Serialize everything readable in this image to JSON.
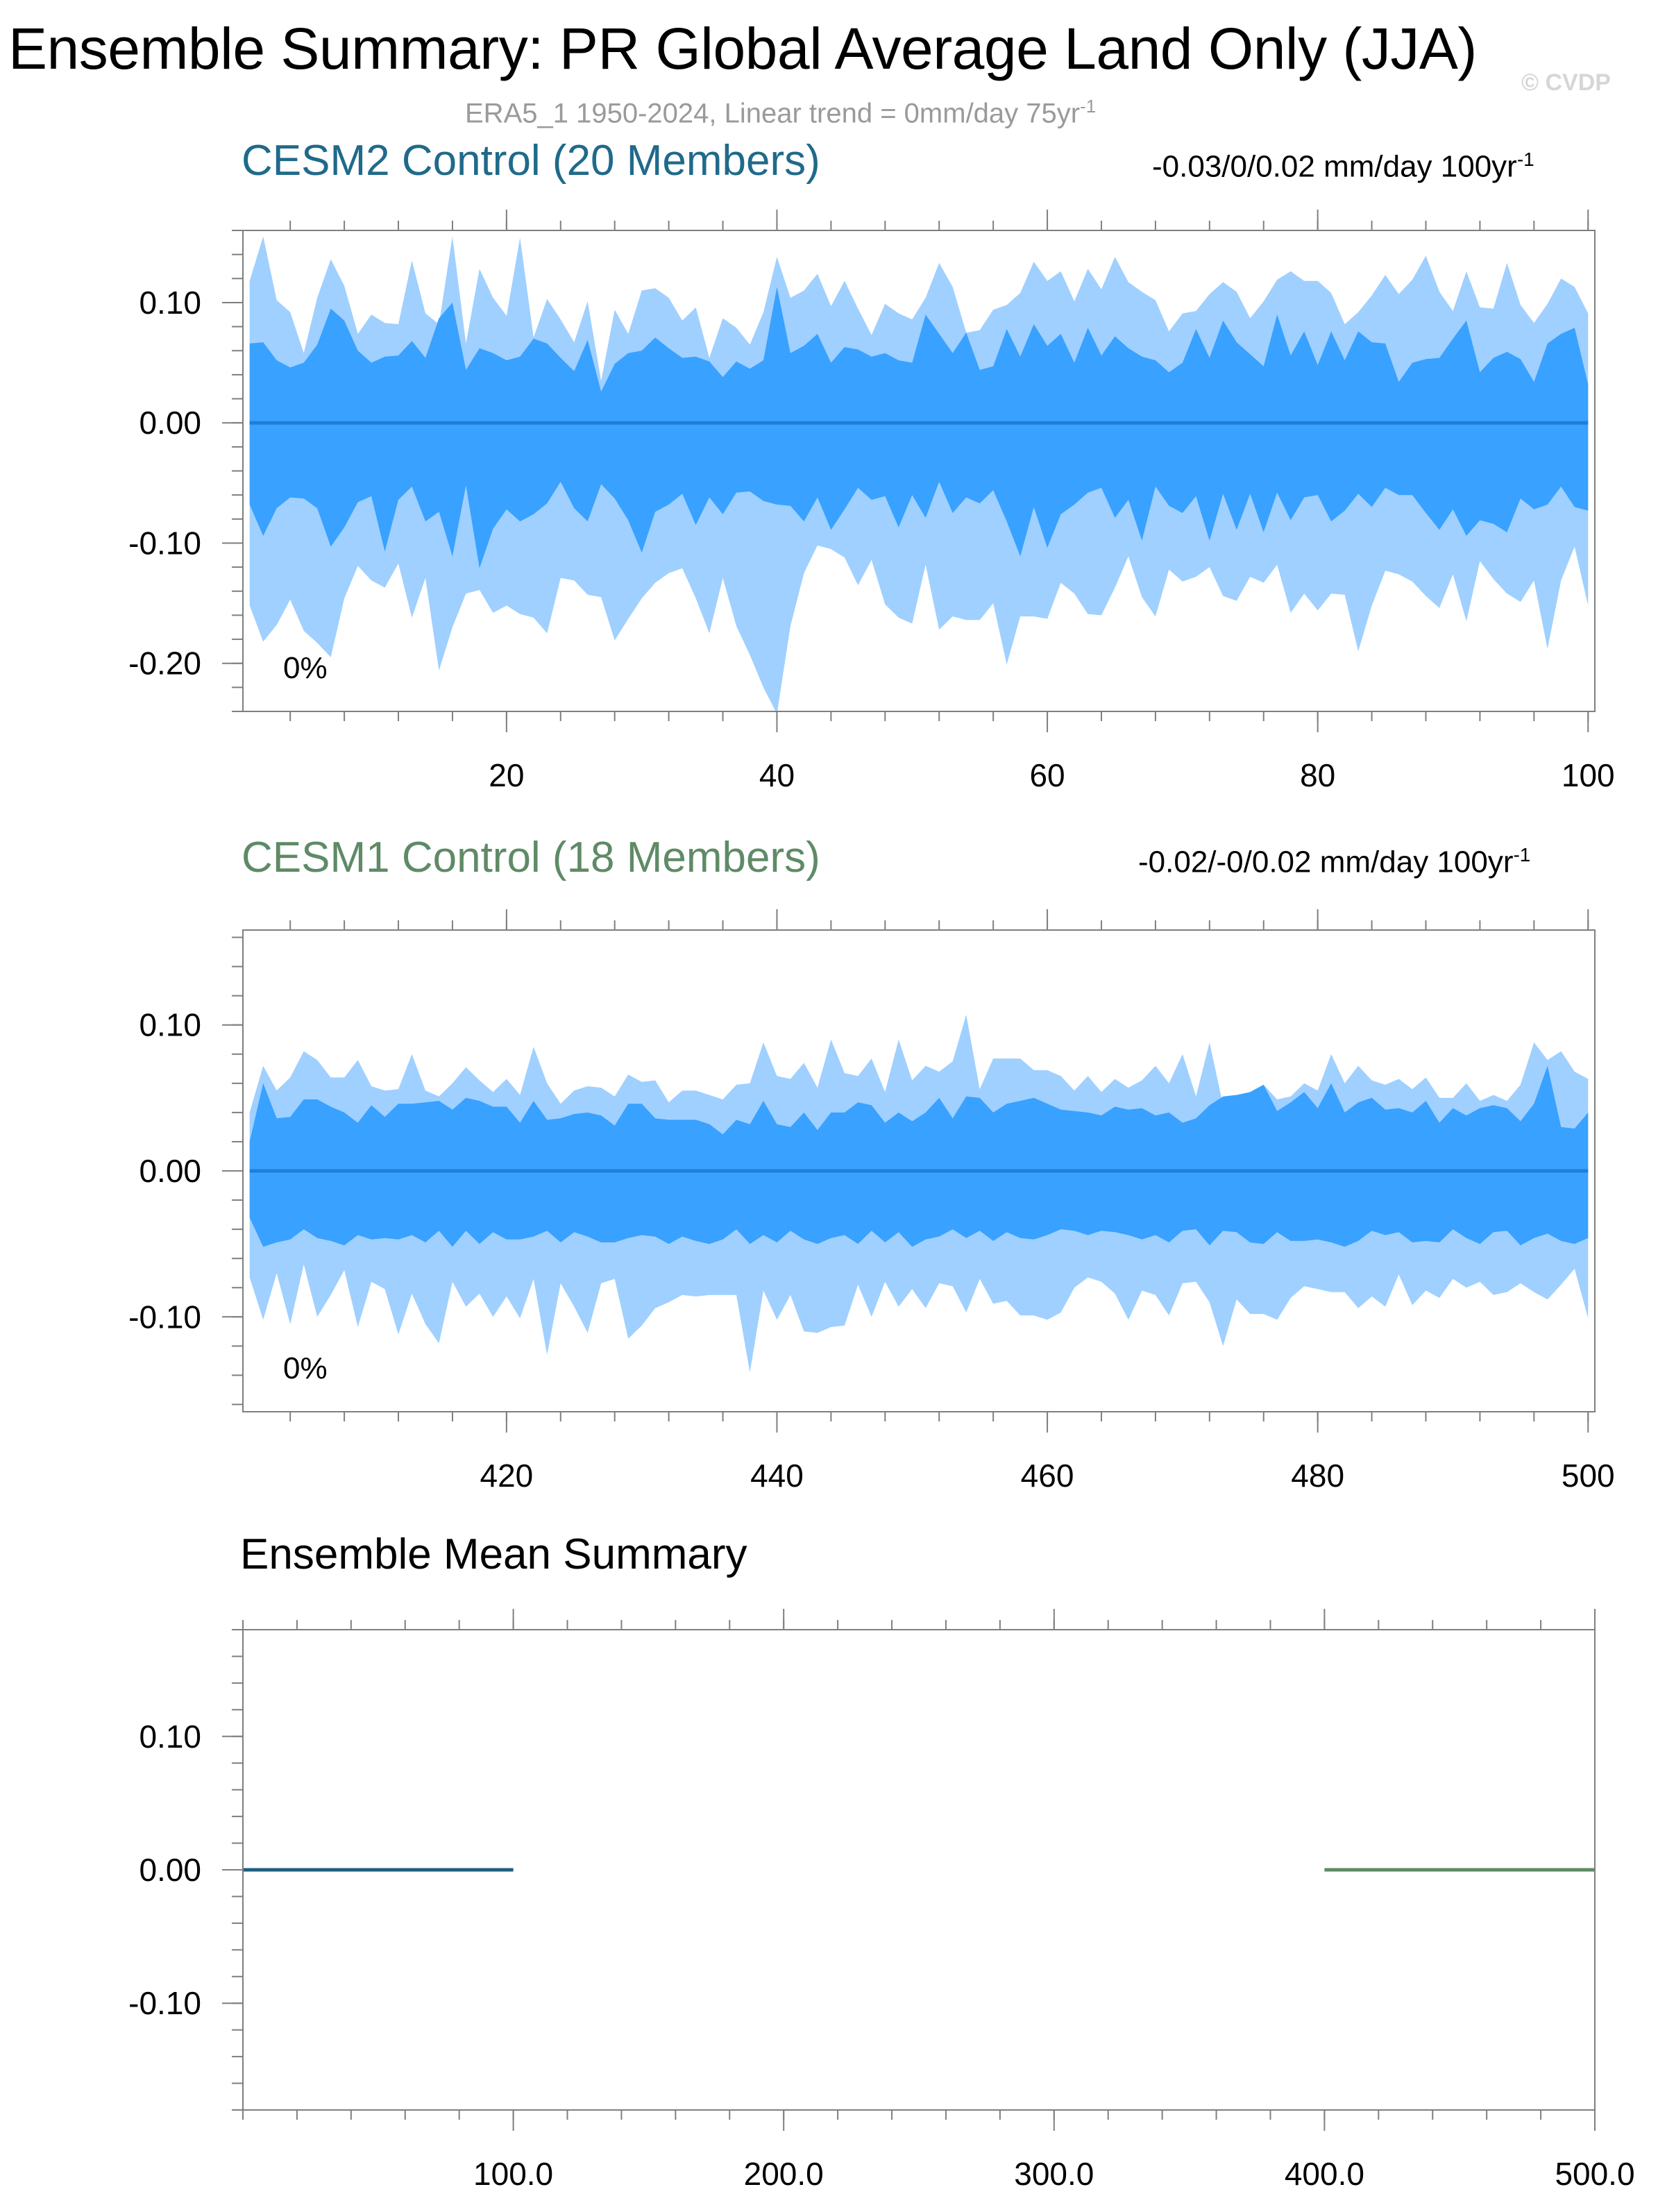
{
  "title": "Ensemble Summary: PR Global Average Land Only (JJA)",
  "subtitle": {
    "text": "ERA5_1 1950-2024, Linear trend = 0mm/day 75yr",
    "sup": "-1",
    "color": "#9a9a9a"
  },
  "watermark": "© CVDP",
  "colors": {
    "band_outer": "#9fd0ff",
    "band_inner": "#39a1ff",
    "mean_line": "#1f7ed8",
    "cesm2_title": "#1f6a8a",
    "cesm1_title": "#5f8a66",
    "axis": "#7f7f7f"
  },
  "chart_data": [
    {
      "type": "area",
      "name": "cesm2",
      "panel_title": "CESM2 Control (20 Members)",
      "trend_label": {
        "text": "-0.03/0/0.02 mm/day 100yr",
        "sup": "-1"
      },
      "percent_label": "0%",
      "x": {
        "start": 1,
        "end": 100
      },
      "xlim": [
        0.5,
        100.5
      ],
      "ylim": [
        -0.24,
        0.16
      ],
      "xticks": [
        20,
        40,
        60,
        80,
        100
      ],
      "xtick_labels": [
        "20",
        "40",
        "60",
        "80",
        "100"
      ],
      "yticks": [
        0.1,
        0.0,
        -0.1,
        -0.2
      ],
      "ytick_labels": [
        "0.10",
        "0.00",
        "-0.10",
        "-0.20"
      ],
      "mean": 0.0,
      "series": [
        {
          "name": "max",
          "values": [
            0.118,
            0.155,
            0.102,
            0.092,
            0.058,
            0.104,
            0.136,
            0.114,
            0.074,
            0.09,
            0.083,
            0.082,
            0.135,
            0.091,
            0.082,
            0.155,
            0.066,
            0.128,
            0.104,
            0.089,
            0.154,
            0.071,
            0.103,
            0.086,
            0.067,
            0.101,
            0.035,
            0.094,
            0.074,
            0.11,
            0.112,
            0.104,
            0.085,
            0.096,
            0.054,
            0.087,
            0.079,
            0.065,
            0.092,
            0.138,
            0.104,
            0.11,
            0.124,
            0.097,
            0.118,
            0.095,
            0.073,
            0.099,
            0.091,
            0.086,
            0.104,
            0.133,
            0.113,
            0.075,
            0.077,
            0.094,
            0.098,
            0.108,
            0.134,
            0.118,
            0.126,
            0.101,
            0.128,
            0.111,
            0.138,
            0.117,
            0.109,
            0.102,
            0.076,
            0.091,
            0.093,
            0.107,
            0.117,
            0.109,
            0.087,
            0.101,
            0.119,
            0.126,
            0.118,
            0.118,
            0.108,
            0.082,
            0.092,
            0.106,
            0.123,
            0.107,
            0.119,
            0.139,
            0.109,
            0.093,
            0.126,
            0.096,
            0.095,
            0.133,
            0.098,
            0.083,
            0.099,
            0.12,
            0.113,
            0.091
          ]
        },
        {
          "name": "p75",
          "values": [
            0.066,
            0.067,
            0.052,
            0.046,
            0.05,
            0.065,
            0.095,
            0.085,
            0.06,
            0.05,
            0.055,
            0.056,
            0.068,
            0.054,
            0.087,
            0.1,
            0.044,
            0.062,
            0.058,
            0.052,
            0.055,
            0.07,
            0.066,
            0.054,
            0.043,
            0.069,
            0.026,
            0.049,
            0.058,
            0.06,
            0.071,
            0.062,
            0.054,
            0.055,
            0.051,
            0.038,
            0.051,
            0.045,
            0.052,
            0.113,
            0.058,
            0.064,
            0.074,
            0.05,
            0.063,
            0.061,
            0.055,
            0.058,
            0.052,
            0.05,
            0.09,
            0.074,
            0.058,
            0.075,
            0.044,
            0.047,
            0.078,
            0.055,
            0.082,
            0.064,
            0.074,
            0.05,
            0.079,
            0.056,
            0.072,
            0.062,
            0.055,
            0.052,
            0.042,
            0.05,
            0.078,
            0.054,
            0.085,
            0.067,
            0.057,
            0.047,
            0.09,
            0.056,
            0.076,
            0.048,
            0.076,
            0.052,
            0.076,
            0.067,
            0.066,
            0.034,
            0.05,
            0.053,
            0.054,
            0.07,
            0.085,
            0.042,
            0.054,
            0.059,
            0.053,
            0.034,
            0.066,
            0.074,
            0.079,
            0.032
          ]
        },
        {
          "name": "p25",
          "values": [
            -0.068,
            -0.094,
            -0.071,
            -0.062,
            -0.063,
            -0.071,
            -0.103,
            -0.087,
            -0.066,
            -0.061,
            -0.107,
            -0.064,
            -0.053,
            -0.082,
            -0.074,
            -0.111,
            -0.052,
            -0.121,
            -0.088,
            -0.072,
            -0.082,
            -0.076,
            -0.067,
            -0.049,
            -0.071,
            -0.082,
            -0.051,
            -0.063,
            -0.081,
            -0.108,
            -0.074,
            -0.068,
            -0.059,
            -0.085,
            -0.062,
            -0.076,
            -0.058,
            -0.057,
            -0.065,
            -0.068,
            -0.069,
            -0.082,
            -0.062,
            -0.089,
            -0.072,
            -0.054,
            -0.064,
            -0.061,
            -0.087,
            -0.06,
            -0.079,
            -0.049,
            -0.075,
            -0.062,
            -0.067,
            -0.056,
            -0.082,
            -0.111,
            -0.07,
            -0.104,
            -0.076,
            -0.068,
            -0.058,
            -0.054,
            -0.079,
            -0.064,
            -0.098,
            -0.053,
            -0.069,
            -0.075,
            -0.061,
            -0.098,
            -0.059,
            -0.089,
            -0.059,
            -0.091,
            -0.058,
            -0.081,
            -0.062,
            -0.06,
            -0.082,
            -0.073,
            -0.059,
            -0.07,
            -0.054,
            -0.06,
            -0.06,
            -0.075,
            -0.089,
            -0.072,
            -0.094,
            -0.081,
            -0.084,
            -0.091,
            -0.063,
            -0.072,
            -0.068,
            -0.053,
            -0.07,
            -0.073
          ]
        },
        {
          "name": "min",
          "values": [
            -0.152,
            -0.182,
            -0.168,
            -0.147,
            -0.173,
            -0.183,
            -0.195,
            -0.146,
            -0.119,
            -0.131,
            -0.137,
            -0.117,
            -0.162,
            -0.129,
            -0.206,
            -0.17,
            -0.142,
            -0.139,
            -0.158,
            -0.152,
            -0.159,
            -0.162,
            -0.175,
            -0.129,
            -0.131,
            -0.143,
            -0.145,
            -0.181,
            -0.163,
            -0.146,
            -0.133,
            -0.125,
            -0.121,
            -0.146,
            -0.175,
            -0.129,
            -0.169,
            -0.193,
            -0.22,
            -0.242,
            -0.169,
            -0.125,
            -0.102,
            -0.105,
            -0.112,
            -0.135,
            -0.114,
            -0.151,
            -0.162,
            -0.167,
            -0.118,
            -0.172,
            -0.161,
            -0.164,
            -0.164,
            -0.15,
            -0.201,
            -0.161,
            -0.161,
            -0.163,
            -0.133,
            -0.142,
            -0.159,
            -0.16,
            -0.137,
            -0.111,
            -0.145,
            -0.161,
            -0.122,
            -0.132,
            -0.128,
            -0.12,
            -0.144,
            -0.148,
            -0.128,
            -0.133,
            -0.118,
            -0.158,
            -0.142,
            -0.156,
            -0.142,
            -0.143,
            -0.19,
            -0.152,
            -0.123,
            -0.126,
            -0.132,
            -0.144,
            -0.154,
            -0.126,
            -0.165,
            -0.115,
            -0.13,
            -0.142,
            -0.149,
            -0.131,
            -0.188,
            -0.131,
            -0.103,
            -0.152
          ]
        }
      ]
    },
    {
      "type": "area",
      "name": "cesm1",
      "panel_title": "CESM1 Control (18 Members)",
      "trend_label": {
        "text": "-0.02/-0/0.02 mm/day 100yr",
        "sup": "-1"
      },
      "percent_label": "0%",
      "x": {
        "start": 401,
        "end": 500
      },
      "xlim": [
        400.5,
        500.5
      ],
      "ylim": [
        -0.165,
        0.165
      ],
      "xticks": [
        420,
        440,
        460,
        480,
        500
      ],
      "xtick_labels": [
        "420",
        "440",
        "460",
        "480",
        "500"
      ],
      "yticks": [
        0.1,
        0.0,
        -0.1
      ],
      "ytick_labels": [
        "0.10",
        "0.00",
        "-0.10"
      ],
      "mean": 0.0,
      "series": [
        {
          "name": "max",
          "values": [
            0.04,
            0.072,
            0.055,
            0.064,
            0.082,
            0.076,
            0.064,
            0.064,
            0.076,
            0.058,
            0.055,
            0.056,
            0.08,
            0.055,
            0.051,
            0.06,
            0.071,
            0.062,
            0.054,
            0.063,
            0.052,
            0.085,
            0.06,
            0.046,
            0.055,
            0.058,
            0.057,
            0.051,
            0.066,
            0.061,
            0.062,
            0.047,
            0.055,
            0.055,
            0.052,
            0.049,
            0.059,
            0.06,
            0.088,
            0.065,
            0.063,
            0.074,
            0.057,
            0.09,
            0.067,
            0.065,
            0.077,
            0.054,
            0.09,
            0.062,
            0.072,
            0.068,
            0.075,
            0.107,
            0.056,
            0.077,
            0.077,
            0.077,
            0.069,
            0.069,
            0.065,
            0.055,
            0.065,
            0.054,
            0.063,
            0.057,
            0.062,
            0.072,
            0.06,
            0.08,
            0.051,
            0.088,
            0.045,
            0.044,
            0.054,
            0.059,
            0.049,
            0.051,
            0.06,
            0.055,
            0.08,
            0.06,
            0.072,
            0.062,
            0.059,
            0.063,
            0.056,
            0.064,
            0.05,
            0.05,
            0.06,
            0.048,
            0.052,
            0.048,
            0.059,
            0.088,
            0.076,
            0.082,
            0.068,
            0.063
          ]
        },
        {
          "name": "p75",
          "values": [
            0.02,
            0.06,
            0.036,
            0.037,
            0.049,
            0.049,
            0.044,
            0.04,
            0.033,
            0.045,
            0.037,
            0.046,
            0.046,
            0.047,
            0.048,
            0.042,
            0.05,
            0.048,
            0.044,
            0.044,
            0.033,
            0.048,
            0.035,
            0.036,
            0.039,
            0.04,
            0.038,
            0.031,
            0.046,
            0.046,
            0.036,
            0.035,
            0.035,
            0.035,
            0.032,
            0.025,
            0.035,
            0.032,
            0.048,
            0.032,
            0.03,
            0.04,
            0.028,
            0.04,
            0.04,
            0.047,
            0.045,
            0.033,
            0.04,
            0.034,
            0.04,
            0.05,
            0.036,
            0.051,
            0.05,
            0.04,
            0.046,
            0.048,
            0.05,
            0.046,
            0.042,
            0.041,
            0.04,
            0.038,
            0.044,
            0.042,
            0.043,
            0.038,
            0.04,
            0.033,
            0.036,
            0.045,
            0.051,
            0.052,
            0.054,
            0.059,
            0.041,
            0.047,
            0.054,
            0.043,
            0.06,
            0.04,
            0.047,
            0.05,
            0.042,
            0.043,
            0.04,
            0.048,
            0.033,
            0.043,
            0.038,
            0.043,
            0.045,
            0.043,
            0.034,
            0.046,
            0.072,
            0.03,
            0.029,
            0.04
          ]
        },
        {
          "name": "p25",
          "values": [
            -0.032,
            -0.052,
            -0.049,
            -0.047,
            -0.04,
            -0.046,
            -0.048,
            -0.051,
            -0.044,
            -0.047,
            -0.046,
            -0.047,
            -0.044,
            -0.049,
            -0.041,
            -0.052,
            -0.041,
            -0.05,
            -0.042,
            -0.047,
            -0.047,
            -0.045,
            -0.041,
            -0.049,
            -0.042,
            -0.045,
            -0.049,
            -0.049,
            -0.046,
            -0.044,
            -0.045,
            -0.05,
            -0.045,
            -0.048,
            -0.05,
            -0.047,
            -0.04,
            -0.05,
            -0.044,
            -0.049,
            -0.041,
            -0.047,
            -0.05,
            -0.046,
            -0.044,
            -0.05,
            -0.041,
            -0.049,
            -0.042,
            -0.052,
            -0.047,
            -0.045,
            -0.04,
            -0.046,
            -0.041,
            -0.048,
            -0.042,
            -0.046,
            -0.047,
            -0.044,
            -0.04,
            -0.041,
            -0.044,
            -0.041,
            -0.042,
            -0.044,
            -0.047,
            -0.044,
            -0.049,
            -0.041,
            -0.04,
            -0.051,
            -0.041,
            -0.042,
            -0.049,
            -0.05,
            -0.042,
            -0.048,
            -0.048,
            -0.047,
            -0.049,
            -0.052,
            -0.048,
            -0.041,
            -0.044,
            -0.042,
            -0.049,
            -0.048,
            -0.049,
            -0.04,
            -0.046,
            -0.05,
            -0.042,
            -0.041,
            -0.051,
            -0.046,
            -0.043,
            -0.048,
            -0.05,
            -0.046
          ]
        },
        {
          "name": "min",
          "values": [
            -0.073,
            -0.102,
            -0.07,
            -0.105,
            -0.064,
            -0.1,
            -0.085,
            -0.068,
            -0.107,
            -0.076,
            -0.081,
            -0.112,
            -0.084,
            -0.105,
            -0.118,
            -0.076,
            -0.093,
            -0.084,
            -0.1,
            -0.086,
            -0.101,
            -0.074,
            -0.126,
            -0.077,
            -0.093,
            -0.111,
            -0.077,
            -0.074,
            -0.115,
            -0.106,
            -0.094,
            -0.09,
            -0.085,
            -0.086,
            -0.085,
            -0.085,
            -0.085,
            -0.138,
            -0.082,
            -0.102,
            -0.085,
            -0.11,
            -0.111,
            -0.107,
            -0.106,
            -0.078,
            -0.1,
            -0.076,
            -0.093,
            -0.081,
            -0.094,
            -0.077,
            -0.079,
            -0.097,
            -0.074,
            -0.091,
            -0.089,
            -0.099,
            -0.099,
            -0.102,
            -0.097,
            -0.08,
            -0.073,
            -0.076,
            -0.084,
            -0.102,
            -0.082,
            -0.085,
            -0.099,
            -0.077,
            -0.076,
            -0.09,
            -0.12,
            -0.088,
            -0.098,
            -0.098,
            -0.102,
            -0.087,
            -0.079,
            -0.081,
            -0.083,
            -0.083,
            -0.094,
            -0.086,
            -0.093,
            -0.071,
            -0.092,
            -0.082,
            -0.087,
            -0.074,
            -0.08,
            -0.076,
            -0.085,
            -0.083,
            -0.077,
            -0.083,
            -0.088,
            -0.078,
            -0.067,
            -0.101
          ]
        }
      ]
    },
    {
      "type": "line",
      "name": "ensemble-mean",
      "panel_title": "Ensemble Mean Summary",
      "xlim": [
        0,
        500
      ],
      "ylim": [
        -0.18,
        0.18
      ],
      "xticks": [
        100,
        200,
        300,
        400,
        500
      ],
      "xtick_labels": [
        "100.0",
        "200.0",
        "300.0",
        "400.0",
        "500.0"
      ],
      "yticks": [
        0.1,
        0.0,
        -0.1
      ],
      "ytick_labels": [
        "0.10",
        "0.00",
        "-0.10"
      ],
      "series": [
        {
          "name": "CESM2 Control",
          "color": "#1f5f82",
          "x": [
            0,
            100
          ],
          "values": [
            0.0,
            0.0
          ]
        },
        {
          "name": "CESM1 Control",
          "color": "#5f8a66",
          "x": [
            400,
            500
          ],
          "values": [
            0.0,
            0.0
          ]
        }
      ]
    }
  ]
}
